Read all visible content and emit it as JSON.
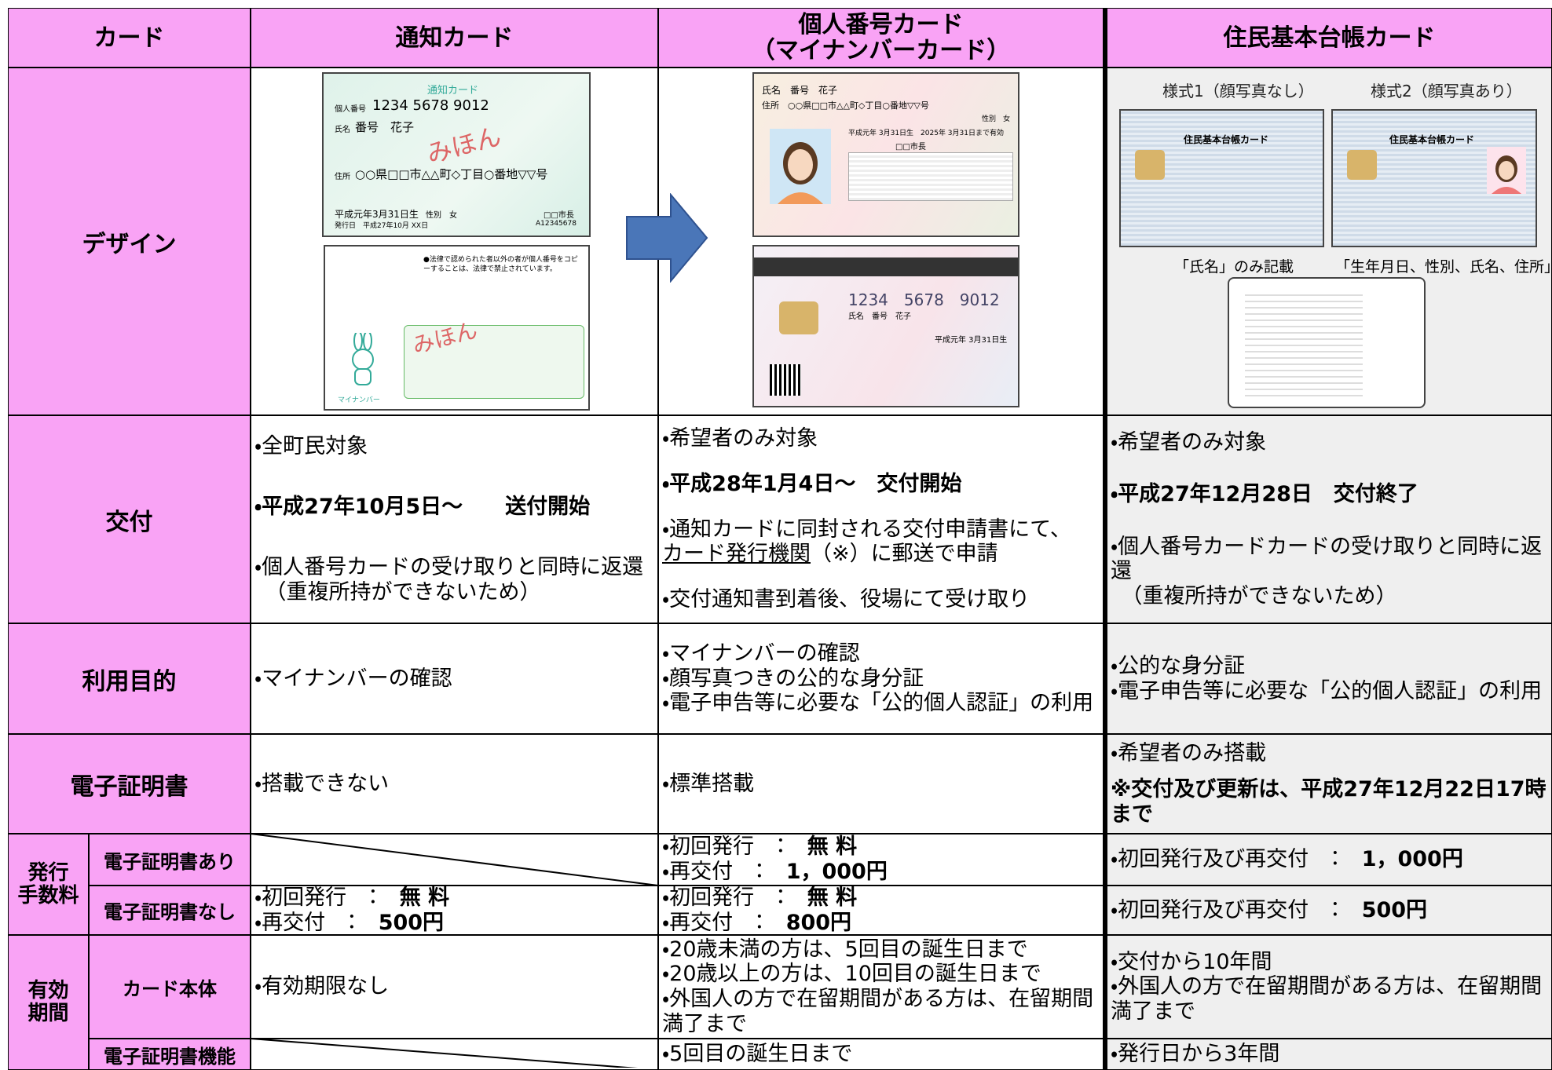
{
  "table": {
    "header": {
      "label": "カード",
      "notification": "通知カード",
      "mynumber": [
        "個人番号カード",
        "（マイナンバーカード）"
      ],
      "juki": "住民基本台帳カード"
    },
    "design": {
      "label": "デザイン",
      "notification_card": {
        "title": "通知カード",
        "number_label": "個人番号",
        "number": "1234 5678 9012",
        "name_label": "氏名",
        "name": "番号　花子",
        "address_label": "住所",
        "address": "○○県□□市△△町◇丁目○番地▽▽号",
        "birth": "平成元年3月31日生",
        "sex": "性別　女",
        "issued": "発行日　平成27年10月 XX日",
        "mayor": "□□市長",
        "serial": "A12345678",
        "sample": "みほん",
        "back_note": "●法律で認められた者以外の者が個人番号をコピーすることは、法律で禁止されています。",
        "mascot": "マイナンバー"
      },
      "mynumber_card": {
        "name": "氏名　番号　花子",
        "address": "住所　○○県□□市△△町◇丁目○番地▽▽号",
        "sex": "性別　女",
        "validity": "平成元年 3月31日生　2025年 3月31日まで有効",
        "mayor": "□□市長",
        "back_number": "1234　5678　9012",
        "back_name": "氏名　番号　花子",
        "back_birth": "平成元年 3月31日生"
      },
      "juki_card": {
        "style1": "様式1（顔写真なし）",
        "style2": "様式2（顔写真あり）",
        "card_title": "住民基本台帳カード",
        "caption1": "「氏名」のみ記載",
        "caption2": "「生年月日、性別、氏名、住所」を記載"
      }
    },
    "rows": [
      {
        "label": "交付",
        "cells": {
          "notification": [
            [
              "・全町民対象"
            ],
            [
              [
                {
                  "bold": "・平成27年10月5日～　　送付開始"
                }
              ]
            ],
            [
              "・個人番号カードの受け取りと同時に返還",
              "　（重複所持ができないため）"
            ]
          ],
          "mynumber": [
            [
              "・希望者のみ対象"
            ],
            [
              [
                {
                  "bold": "・平成28年1月4日～　交付開始"
                }
              ]
            ],
            [
              "・通知カードに同封される交付申請書にて、",
              [
                {
                  "underline": "カード発行機関"
                },
                "（※）に郵送で申請"
              ]
            ],
            [
              "・交付通知書到着後、役場にて受け取り"
            ]
          ],
          "juki": [
            [
              "・希望者のみ対象"
            ],
            [
              [
                {
                  "bold": "・平成27年12月28日　交付終了"
                }
              ]
            ],
            [
              "・個人番号カードカードの受け取りと同時に返還",
              "　（重複所持ができないため）"
            ]
          ]
        }
      },
      {
        "label": "利用目的",
        "cells": {
          "notification": [
            [
              "・マイナンバーの確認"
            ]
          ],
          "mynumber": [
            [
              "・マイナンバーの確認",
              "・顔写真つきの公的な身分証",
              "・電子申告等に必要な「公的個人認証」の利用"
            ]
          ],
          "juki": [
            [
              "・公的な身分証",
              "・電子申告等に必要な「公的個人認証」の利用"
            ]
          ]
        }
      },
      {
        "label": "電子証明書",
        "cells": {
          "notification": [
            [
              "・搭載できない"
            ]
          ],
          "mynumber": [
            [
              "・標準搭載"
            ]
          ],
          "juki": [
            [
              "・希望者のみ搭載"
            ],
            [
              [
                {
                  "bold": "※交付及び更新は、平成27年12月22日17時まで"
                }
              ]
            ]
          ]
        }
      },
      {
        "label": [
          "発行",
          "手数料"
        ],
        "subrows": [
          {
            "label": "電子証明書あり",
            "cells": {
              "mynumber": [
                [
                  [
                    "・初回発行　：　",
                    {
                      "bold": "無 料"
                    }
                  ],
                  [
                    "・再交付　：　",
                    {
                      "bold": "1，000円"
                    }
                  ]
                ]
              ],
              "juki": [
                [
                  [
                    "・初回発行及び再交付　：　",
                    {
                      "bold": "1，000円"
                    }
                  ]
                ]
              ]
            }
          },
          {
            "label": "電子証明書なし",
            "cells": {
              "notification": [
                [
                  [
                    "・初回発行　：　",
                    {
                      "bold": "無 料"
                    }
                  ],
                  [
                    "・再交付　：　",
                    {
                      "bold": "500円"
                    }
                  ]
                ]
              ],
              "mynumber": [
                [
                  [
                    "・初回発行　：　",
                    {
                      "bold": "無 料"
                    }
                  ],
                  [
                    "・再交付　：　",
                    {
                      "bold": "800円"
                    }
                  ]
                ]
              ],
              "juki": [
                [
                  [
                    "・初回発行及び再交付　：　",
                    {
                      "bold": "500円"
                    }
                  ]
                ]
              ]
            }
          }
        ]
      },
      {
        "label": [
          "有効",
          "期間"
        ],
        "subrows": [
          {
            "label": "カード本体",
            "cells": {
              "notification": [
                [
                  "・有効期限なし"
                ]
              ],
              "mynumber": [
                [
                  "・20歳未満の方は、5回目の誕生日まで",
                  "・20歳以上の方は、10回目の誕生日まで",
                  "・外国人の方で在留期間がある方は、在留期間満了まで"
                ]
              ],
              "juki": [
                [
                  "・交付から10年間",
                  "・外国人の方で在留期間がある方は、在留期間満了まで"
                ]
              ]
            }
          },
          {
            "label": "電子証明書機能",
            "cells": {
              "mynumber": [
                [
                  "・5回目の誕生日まで"
                ]
              ],
              "juki": [
                [
                  "・発行日から3年間"
                ]
              ]
            }
          }
        ]
      }
    ]
  }
}
